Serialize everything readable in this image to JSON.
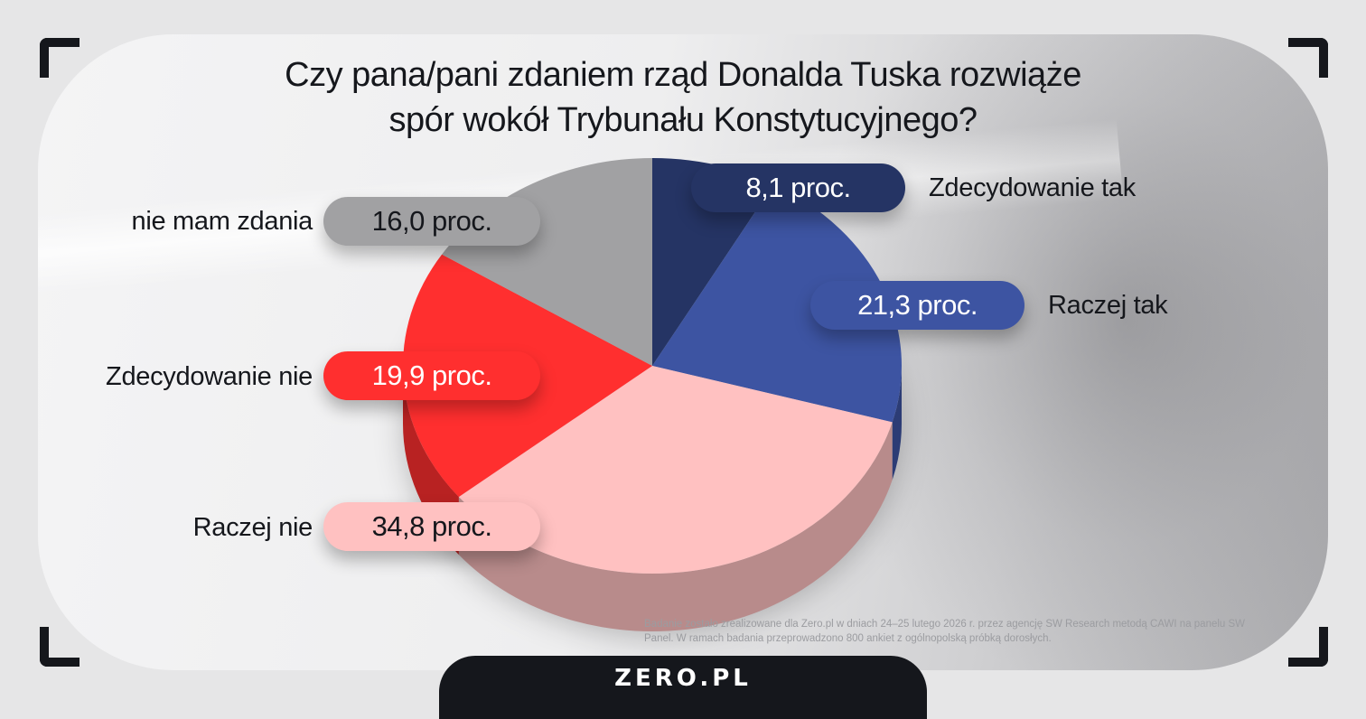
{
  "title_lines": [
    "Czy pana/pani zdaniem rząd Donalda Tuska rozwiąże",
    "spór wokół Trybunału Konstytucyjnego?"
  ],
  "chart_data": {
    "type": "pie",
    "title": "Czy pana/pani zdaniem rząd Donalda Tuska rozwiąże spór wokół Trybunału Konstytucyjnego?",
    "unit": "proc.",
    "slices": [
      {
        "label": "Zdecydowanie tak",
        "value": 8.1,
        "value_label": "8,1 proc.",
        "color": "#253464"
      },
      {
        "label": "Raczej tak",
        "value": 21.3,
        "value_label": "21,3 proc.",
        "color": "#3d54a2"
      },
      {
        "label": "Raczej nie",
        "value": 34.8,
        "value_label": "34,8 proc.",
        "color": "#ffc1c1"
      },
      {
        "label": "Zdecydowanie nie",
        "value": 19.9,
        "value_label": "19,9 proc.",
        "color": "#ff2f2f"
      },
      {
        "label": "nie mam zdania",
        "value": 16.0,
        "value_label": "16,0 proc.",
        "color": "#a1a1a3"
      }
    ]
  },
  "note": "Badanie zostało zrealizowane dla Zero.pl w dniach 24–25 lutego 2026 r. przez agencję SW Research metodą CAWI na panelu SW Panel. W ramach badania przeprowadzono 800 ankiet z ogólnopolską próbką dorosłych.",
  "logo": "ZERO.PL"
}
